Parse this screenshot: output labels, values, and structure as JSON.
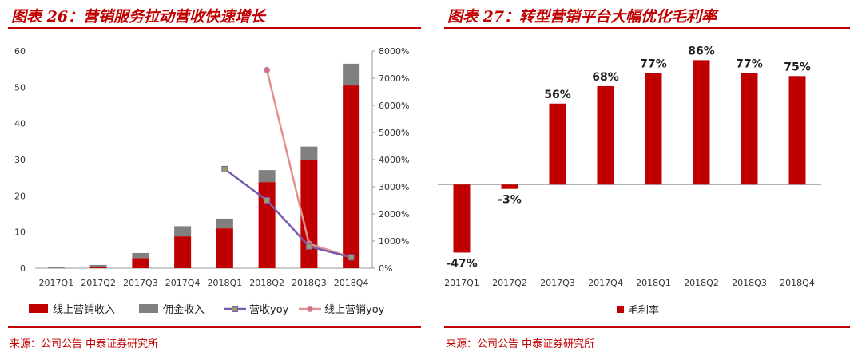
{
  "colors": {
    "online_bar": "#c00000",
    "commission_bar": "#808080",
    "revenue_yoy": "#7a5cad",
    "online_yoy": "#e0928e",
    "accent": "#c00000"
  },
  "left": {
    "title": "图表 26：营销服务拉动营收快速增长",
    "source": "来源：公司公告  中泰证券研究所"
  },
  "right": {
    "title": "图表 27：转型营销平台大幅优化毛利率",
    "source": "来源：公司公告  中泰证券研究所"
  },
  "chart_data": [
    {
      "type": "bar",
      "stacked": true,
      "categories": [
        "2017Q1",
        "2017Q2",
        "2017Q3",
        "2017Q4",
        "2018Q1",
        "2018Q2",
        "2018Q3",
        "2018Q4"
      ],
      "ylim": [
        0,
        60
      ],
      "y_ticks": [
        "0",
        "10",
        "20",
        "30",
        "40",
        "50",
        "60"
      ],
      "y2lim": [
        0,
        8000
      ],
      "y2_ticks": [
        "0%",
        "1000%",
        "2000%",
        "3000%",
        "4000%",
        "5000%",
        "6000%",
        "7000%",
        "8000%"
      ],
      "series": [
        {
          "name": "线上营销收入",
          "kind": "bar",
          "values": [
            0,
            0.3,
            2.8,
            8.8,
            11.0,
            23.8,
            29.8,
            50.5
          ]
        },
        {
          "name": "佣金收入",
          "kind": "bar",
          "values": [
            0.3,
            0.6,
            1.4,
            2.8,
            2.7,
            3.3,
            3.8,
            6.0
          ]
        },
        {
          "name": "营收yoy",
          "kind": "line",
          "axis": "right",
          "values": [
            null,
            null,
            null,
            null,
            3650,
            2500,
            800,
            400
          ]
        },
        {
          "name": "线上营销yoy",
          "kind": "line",
          "axis": "right",
          "values": [
            null,
            null,
            null,
            null,
            null,
            7300,
            900,
            400
          ]
        }
      ],
      "legend": "bottom",
      "grid": false
    },
    {
      "type": "bar",
      "categories": [
        "2017Q1",
        "2017Q2",
        "2017Q3",
        "2017Q4",
        "2018Q1",
        "2018Q2",
        "2018Q3",
        "2018Q4"
      ],
      "series": [
        {
          "name": "毛利率",
          "values": [
            -47,
            -3,
            56,
            68,
            77,
            86,
            77,
            75
          ]
        }
      ],
      "data_labels": [
        "-47%",
        "-3%",
        "56%",
        "68%",
        "77%",
        "86%",
        "77%",
        "75%"
      ],
      "ylim": [
        -60,
        100
      ],
      "legend": "bottom",
      "grid": false
    }
  ]
}
